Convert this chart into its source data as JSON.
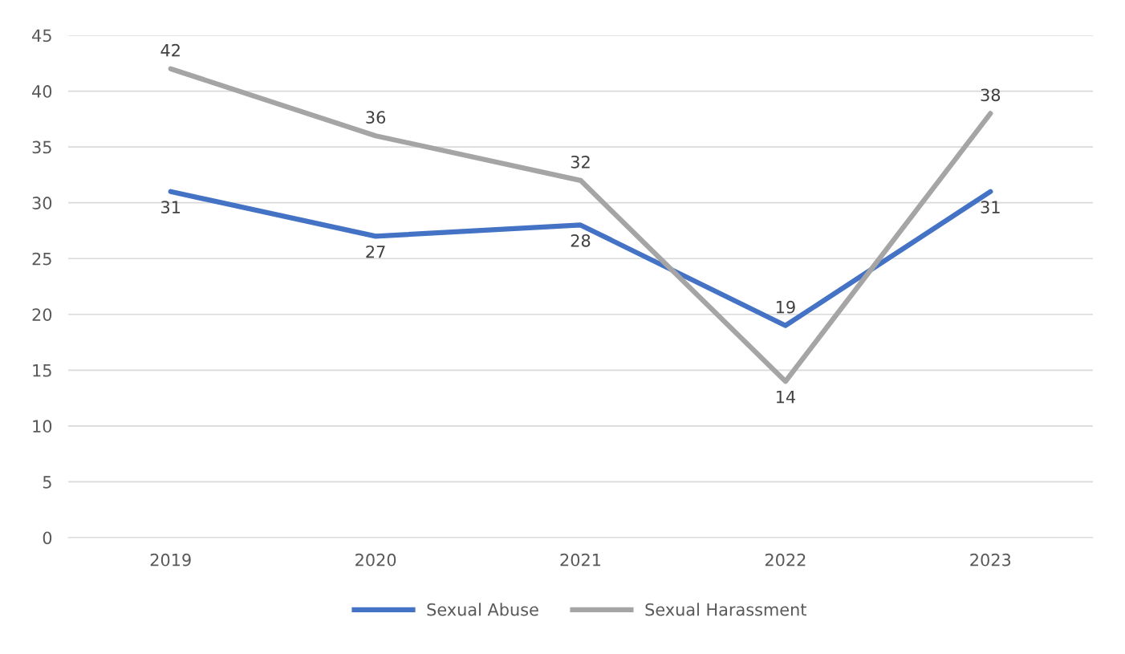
{
  "chart_data": {
    "type": "line",
    "categories": [
      "2019",
      "2020",
      "2021",
      "2022",
      "2023"
    ],
    "series": [
      {
        "name": "Sexual Abuse",
        "color": "#4472c4",
        "values": [
          31,
          27,
          28,
          19,
          31
        ]
      },
      {
        "name": "Sexual Harassment",
        "color": "#a5a5a5",
        "values": [
          42,
          36,
          32,
          14,
          38
        ]
      }
    ],
    "ylim": [
      0,
      45
    ],
    "yticks": [
      0,
      5,
      10,
      15,
      20,
      25,
      30,
      35,
      40,
      45
    ],
    "grid": "y",
    "legend": "bottom",
    "data_labels": true,
    "marker": "none",
    "line_style": "solid"
  }
}
